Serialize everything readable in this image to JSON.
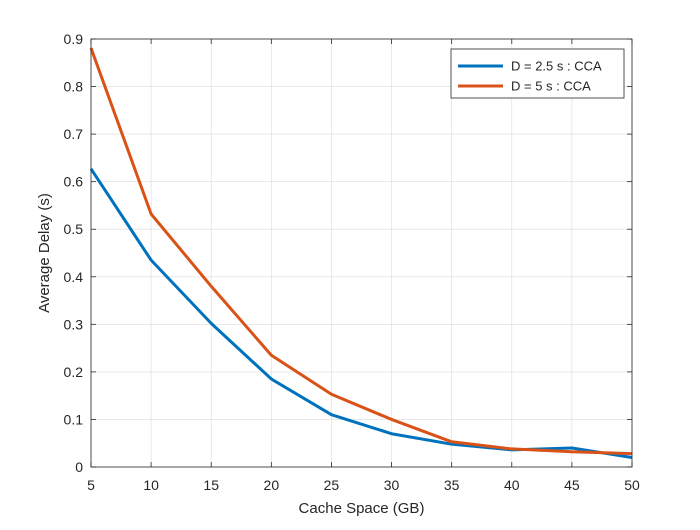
{
  "chart_data": {
    "type": "line",
    "title": "",
    "xlabel": "Cache Space (GB)",
    "ylabel": "Average Delay (s)",
    "xlim": [
      5,
      50
    ],
    "ylim": [
      0,
      0.9
    ],
    "xticks": [
      5,
      10,
      15,
      20,
      25,
      30,
      35,
      40,
      45,
      50
    ],
    "yticks": [
      0,
      0.1,
      0.2,
      0.3,
      0.4,
      0.5,
      0.6,
      0.7,
      0.8,
      0.9
    ],
    "xtick_labels": [
      "5",
      "10",
      "15",
      "20",
      "25",
      "30",
      "35",
      "40",
      "45",
      "50"
    ],
    "ytick_labels": [
      "0",
      "0.1",
      "0.2",
      "0.3",
      "0.4",
      "0.5",
      "0.6",
      "0.7",
      "0.8",
      "0.9"
    ],
    "grid": true,
    "legend_position": "top-right",
    "x": [
      5,
      10,
      15,
      20,
      25,
      30,
      35,
      40,
      45,
      50
    ],
    "series": [
      {
        "name": "D = 2.5 s : CCA",
        "color": "#0072BD",
        "values": [
          0.627,
          0.435,
          0.302,
          0.185,
          0.11,
          0.07,
          0.048,
          0.036,
          0.04,
          0.02
        ]
      },
      {
        "name": "D = 5 s : CCA",
        "color": "#D95319",
        "values": [
          0.881,
          0.532,
          0.38,
          0.235,
          0.153,
          0.1,
          0.053,
          0.038,
          0.032,
          0.028
        ]
      }
    ]
  }
}
